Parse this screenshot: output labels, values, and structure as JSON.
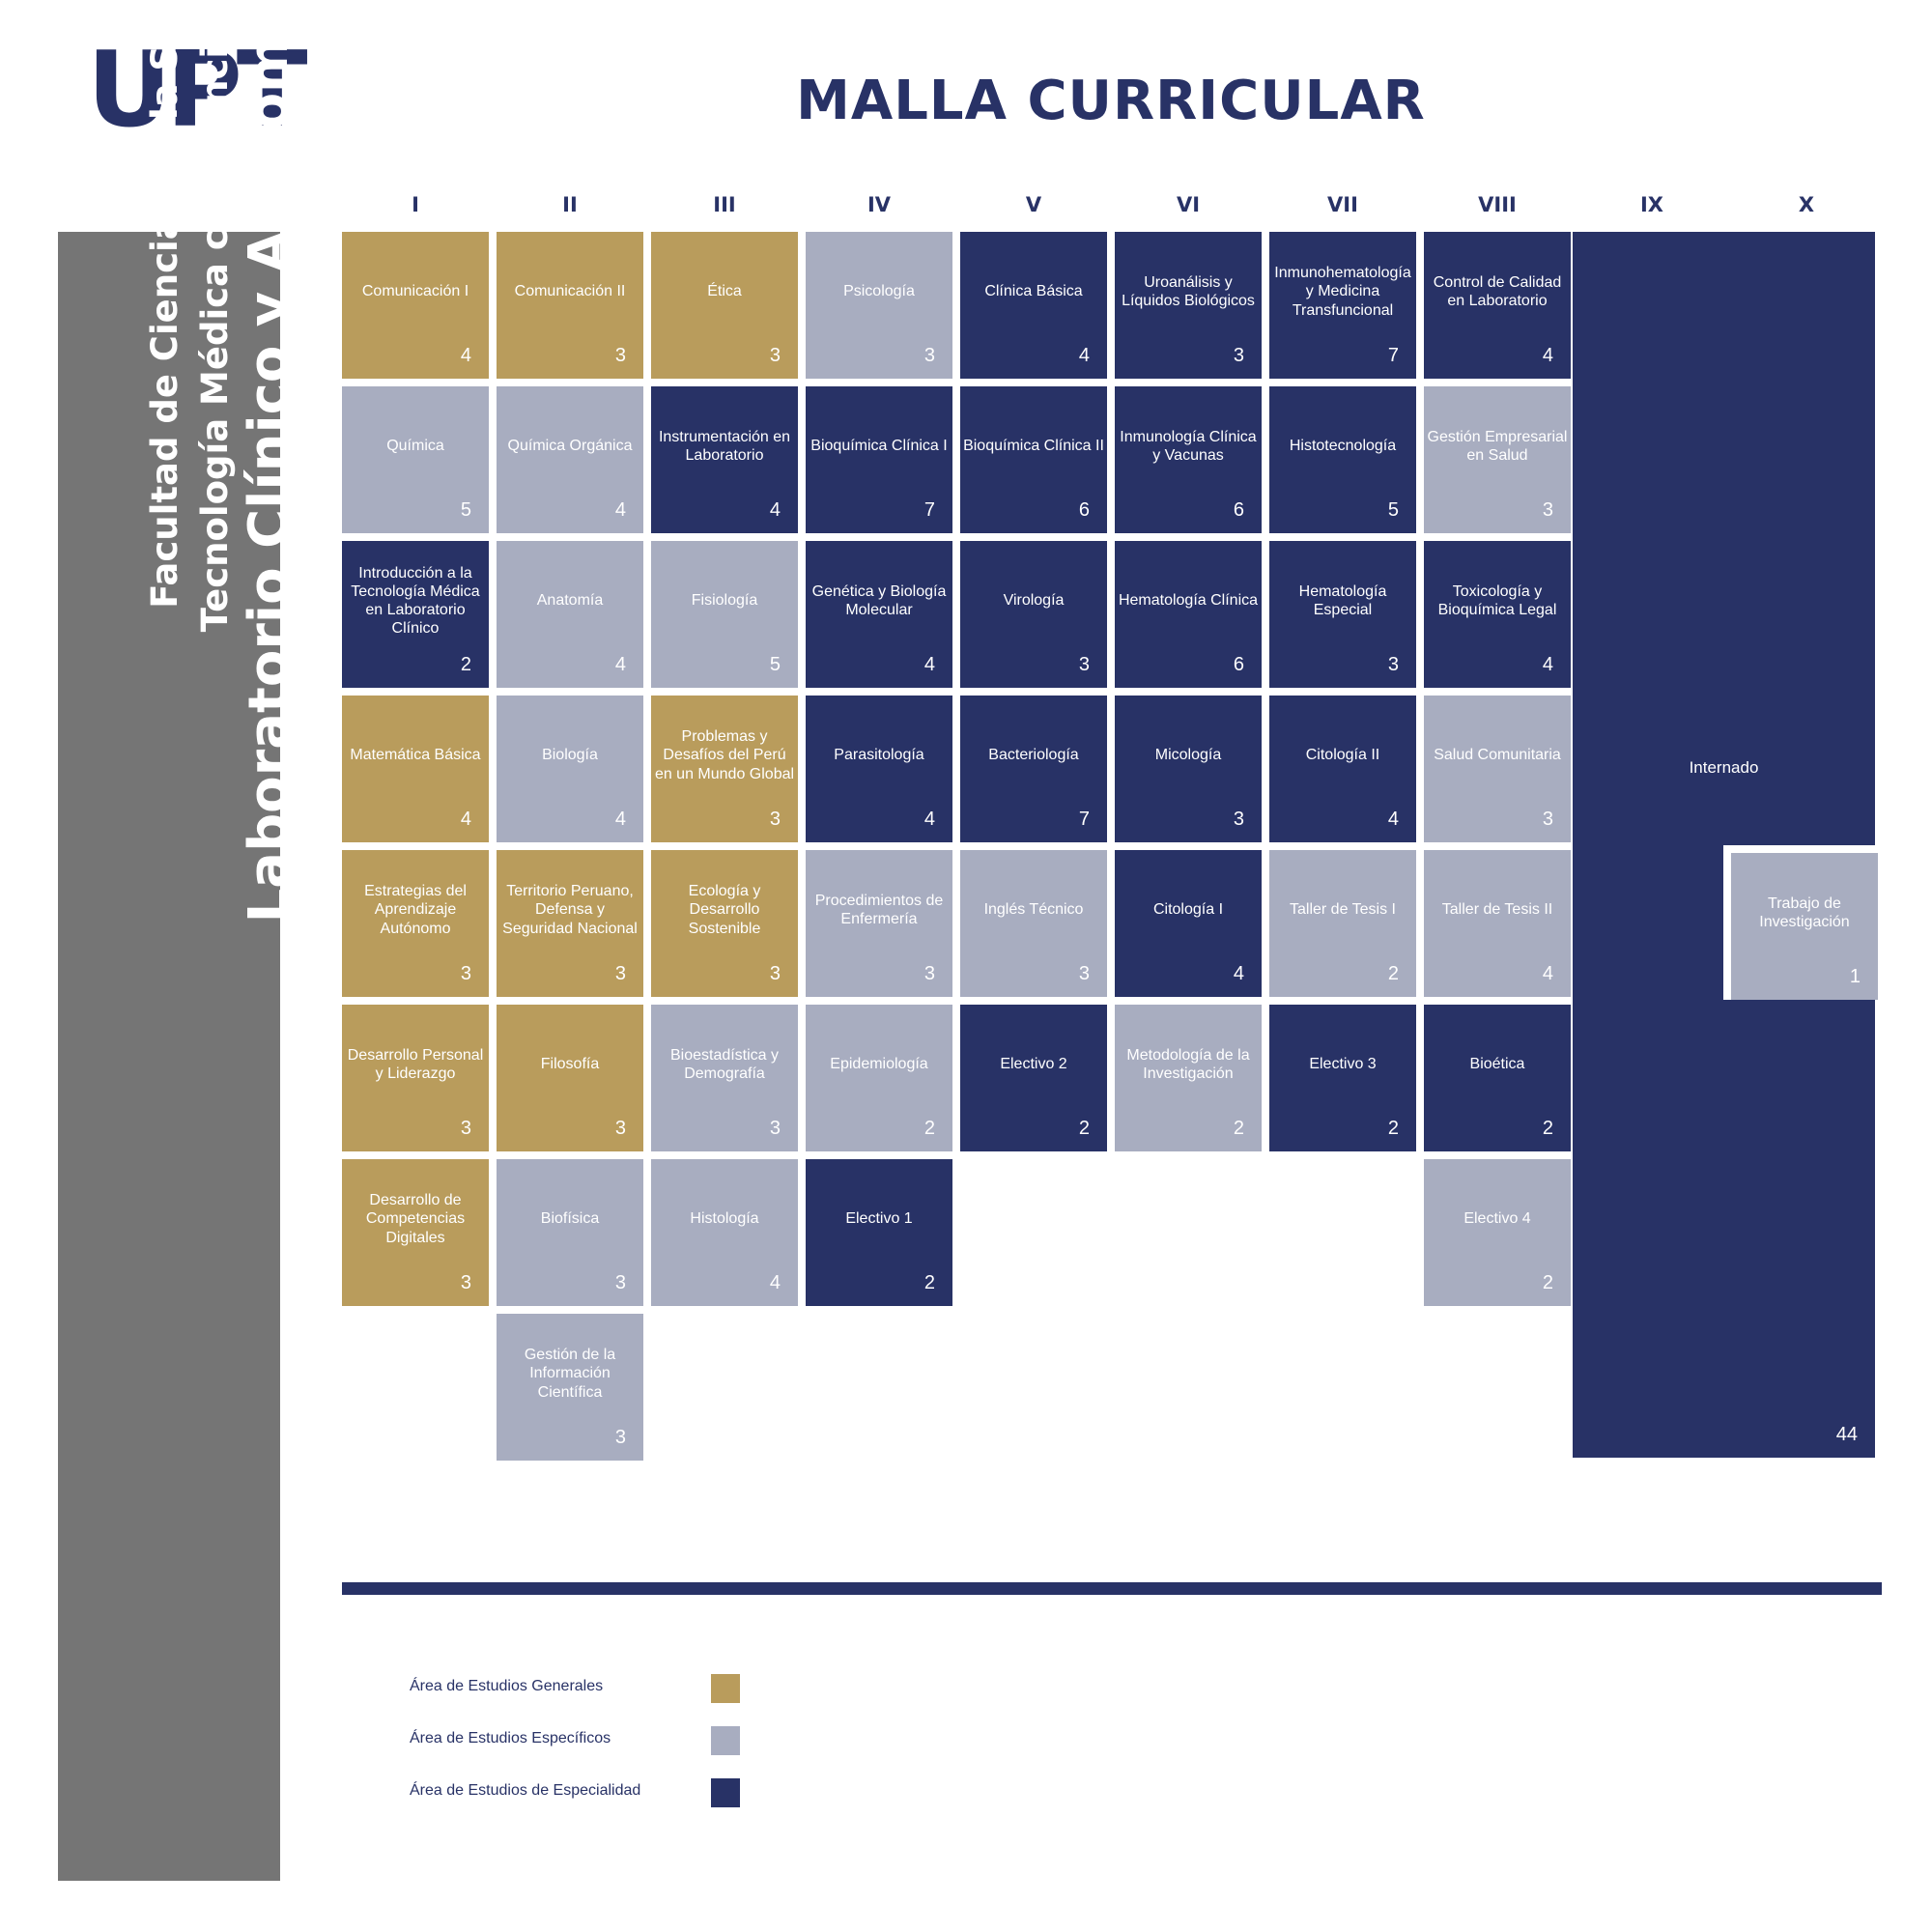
{
  "logo": "UPT",
  "title": "MALLA CURRICULAR",
  "sidebar": {
    "line1": "Facultad de Ciencias de la Salud",
    "line2": "Tecnología Médica con mención en",
    "line3": "Laboratorio Clínico y Anatomía Patológica"
  },
  "colors": {
    "generales": "#b99c5c",
    "especificos": "#a8adc0",
    "especialidad": "#283266",
    "sidebar": "#757575"
  },
  "semesters": [
    "I",
    "II",
    "III",
    "IV",
    "V",
    "VI",
    "VII",
    "VIII",
    "IX",
    "X"
  ],
  "courses": [
    [
      {
        "name": "Comunicación I",
        "credits": "4",
        "area": "gen"
      },
      {
        "name": "Química",
        "credits": "5",
        "area": "esp"
      },
      {
        "name": "Introducción a la Tecnología Médica en Laboratorio Clínico",
        "credits": "2",
        "area": "spe"
      },
      {
        "name": "Matemática Básica",
        "credits": "4",
        "area": "gen"
      },
      {
        "name": "Estrategias del Aprendizaje Autónomo",
        "credits": "3",
        "area": "gen"
      },
      {
        "name": "Desarrollo Personal y Liderazgo",
        "credits": "3",
        "area": "gen"
      },
      {
        "name": "Desarrollo de Competencias Digitales",
        "credits": "3",
        "area": "gen"
      }
    ],
    [
      {
        "name": "Comunicación II",
        "credits": "3",
        "area": "gen"
      },
      {
        "name": "Química Orgánica",
        "credits": "4",
        "area": "esp"
      },
      {
        "name": "Anatomía",
        "credits": "4",
        "area": "esp"
      },
      {
        "name": "Biología",
        "credits": "4",
        "area": "esp"
      },
      {
        "name": "Territorio Peruano, Defensa y Seguridad Nacional",
        "credits": "3",
        "area": "gen"
      },
      {
        "name": "Filosofía",
        "credits": "3",
        "area": "gen"
      },
      {
        "name": "Biofísica",
        "credits": "3",
        "area": "esp"
      },
      {
        "name": "Gestión de la Información Científica",
        "credits": "3",
        "area": "esp"
      }
    ],
    [
      {
        "name": "Ética",
        "credits": "3",
        "area": "gen"
      },
      {
        "name": "Instrumentación en Laboratorio",
        "credits": "4",
        "area": "spe"
      },
      {
        "name": "Fisiología",
        "credits": "5",
        "area": "esp"
      },
      {
        "name": "Problemas y Desafíos del Perú en un Mundo Global",
        "credits": "3",
        "area": "gen"
      },
      {
        "name": "Ecología y Desarrollo Sostenible",
        "credits": "3",
        "area": "gen"
      },
      {
        "name": "Bioestadística y Demografía",
        "credits": "3",
        "area": "esp"
      },
      {
        "name": "Histología",
        "credits": "4",
        "area": "esp"
      }
    ],
    [
      {
        "name": "Psicología",
        "credits": "3",
        "area": "esp"
      },
      {
        "name": "Bioquímica Clínica I",
        "credits": "7",
        "area": "spe"
      },
      {
        "name": "Genética y Biología Molecular",
        "credits": "4",
        "area": "spe"
      },
      {
        "name": "Parasitología",
        "credits": "4",
        "area": "spe"
      },
      {
        "name": "Procedimientos de Enfermería",
        "credits": "3",
        "area": "esp"
      },
      {
        "name": "Epidemiología",
        "credits": "2",
        "area": "esp"
      },
      {
        "name": "Electivo 1",
        "credits": "2",
        "area": "spe"
      }
    ],
    [
      {
        "name": "Clínica Básica",
        "credits": "4",
        "area": "spe"
      },
      {
        "name": "Bioquímica Clínica II",
        "credits": "6",
        "area": "spe"
      },
      {
        "name": "Virología",
        "credits": "3",
        "area": "spe"
      },
      {
        "name": "Bacteriología",
        "credits": "7",
        "area": "spe"
      },
      {
        "name": "Inglés Técnico",
        "credits": "3",
        "area": "esp"
      },
      {
        "name": "Electivo 2",
        "credits": "2",
        "area": "spe"
      }
    ],
    [
      {
        "name": "Uroanálisis y Líquidos Biológicos",
        "credits": "3",
        "area": "spe"
      },
      {
        "name": "Inmunología Clínica y Vacunas",
        "credits": "6",
        "area": "spe"
      },
      {
        "name": "Hematología Clínica",
        "credits": "6",
        "area": "spe"
      },
      {
        "name": "Micología",
        "credits": "3",
        "area": "spe"
      },
      {
        "name": "Citología I",
        "credits": "4",
        "area": "spe"
      },
      {
        "name": "Metodología de la Investigación",
        "credits": "2",
        "area": "esp"
      }
    ],
    [
      {
        "name": "Inmunohematología y Medicina Transfuncional",
        "credits": "7",
        "area": "spe"
      },
      {
        "name": "Histotecnología",
        "credits": "5",
        "area": "spe"
      },
      {
        "name": "Hematología Especial",
        "credits": "3",
        "area": "spe"
      },
      {
        "name": "Citología II",
        "credits": "4",
        "area": "spe"
      },
      {
        "name": "Taller de Tesis I",
        "credits": "2",
        "area": "esp"
      },
      {
        "name": "Electivo 3",
        "credits": "2",
        "area": "spe"
      }
    ],
    [
      {
        "name": "Control de Calidad en Laboratorio",
        "credits": "4",
        "area": "spe"
      },
      {
        "name": "Gestión Empresarial en Salud",
        "credits": "3",
        "area": "esp"
      },
      {
        "name": "Toxicología y Bioquímica Legal",
        "credits": "4",
        "area": "spe"
      },
      {
        "name": "Salud Comunitaria",
        "credits": "3",
        "area": "esp"
      },
      {
        "name": "Taller de Tesis II",
        "credits": "4",
        "area": "esp"
      },
      {
        "name": "Bioética",
        "credits": "2",
        "area": "spe"
      },
      {
        "name": "Electivo 4",
        "credits": "2",
        "area": "esp"
      }
    ]
  ],
  "internado": {
    "name": "Internado",
    "credits": "44"
  },
  "trabajo": {
    "name": "Trabajo de Investigación",
    "credits": "1"
  },
  "legend": [
    {
      "label": "Área de Estudios Generales",
      "color": "#b99c5c"
    },
    {
      "label": "Área de Estudios Específicos",
      "color": "#a8adc0"
    },
    {
      "label": "Área de Estudios de Especialidad",
      "color": "#283266"
    }
  ]
}
